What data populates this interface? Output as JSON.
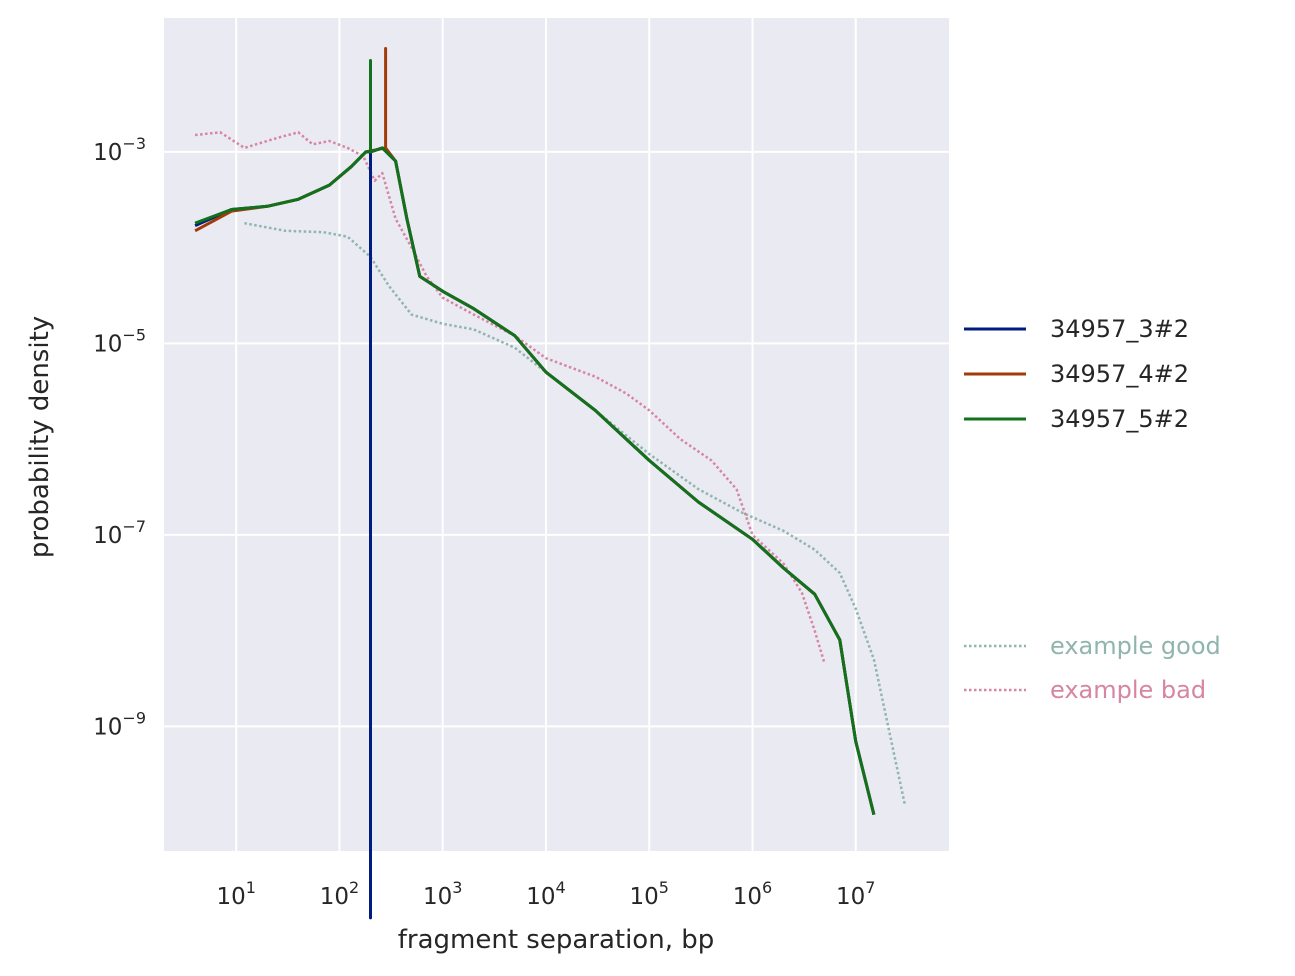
{
  "chart_data": {
    "type": "line",
    "xlabel": "fragment separation, bp",
    "ylabel": "probability density",
    "x_scale": "log",
    "y_scale": "log",
    "xlim": [
      2,
      80000000
    ],
    "ylim": [
      5e-11,
      0.025
    ],
    "grid": true,
    "legend_placement": "right",
    "x_ticks": [
      {
        "value": 10,
        "base": "10",
        "exp": "1"
      },
      {
        "value": 100,
        "base": "10",
        "exp": "2"
      },
      {
        "value": 1000,
        "base": "10",
        "exp": "3"
      },
      {
        "value": 10000,
        "base": "10",
        "exp": "4"
      },
      {
        "value": 100000,
        "base": "10",
        "exp": "5"
      },
      {
        "value": 1000000,
        "base": "10",
        "exp": "6"
      },
      {
        "value": 10000000,
        "base": "10",
        "exp": "7"
      }
    ],
    "y_ticks": [
      {
        "value": 0.001,
        "base": "10",
        "exp": "−3"
      },
      {
        "value": 1e-05,
        "base": "10",
        "exp": "−5"
      },
      {
        "value": 1e-07,
        "base": "10",
        "exp": "−7"
      },
      {
        "value": 1e-09,
        "base": "10",
        "exp": "−9"
      }
    ],
    "series": [
      {
        "name": "34957_3#2",
        "color": "#001c7f",
        "style": "solid",
        "x": [
          4,
          9,
          20,
          40,
          80,
          130,
          180,
          200,
          200,
          200,
          260,
          350,
          450,
          600,
          1000,
          2000,
          5000,
          10000,
          30000,
          100000,
          300000,
          1000000,
          2000000,
          4000000,
          7000000,
          10000000,
          15000000
        ],
        "y": [
          0.00017,
          0.00025,
          0.00027,
          0.00032,
          0.00045,
          0.0007,
          0.001,
          0.001,
          1e-11,
          0.001,
          0.0011,
          0.0008,
          0.0002,
          5e-05,
          3.5e-05,
          2.3e-05,
          1.2e-05,
          5e-06,
          2e-06,
          6e-07,
          2.2e-07,
          9e-08,
          4.5e-08,
          2.4e-08,
          8e-09,
          7e-10,
          1.2e-10
        ]
      },
      {
        "name": "34957_4#2",
        "color": "#a23b0a",
        "style": "solid",
        "x": [
          4,
          9,
          20,
          40,
          80,
          130,
          180,
          280,
          280,
          280,
          350,
          450,
          600,
          1000,
          2000,
          5000,
          10000,
          30000,
          100000,
          300000,
          1000000,
          2000000,
          4000000,
          7000000,
          10000000,
          15000000
        ],
        "y": [
          0.00015,
          0.00024,
          0.00027,
          0.00032,
          0.00045,
          0.0007,
          0.001,
          0.0011,
          0.012,
          0.0011,
          0.0008,
          0.0002,
          5e-05,
          3.5e-05,
          2.3e-05,
          1.2e-05,
          5e-06,
          2e-06,
          6e-07,
          2.2e-07,
          9e-08,
          4.5e-08,
          2.4e-08,
          8e-09,
          7e-10,
          1.2e-10
        ]
      },
      {
        "name": "34957_5#2",
        "color": "#12711c",
        "style": "solid",
        "x": [
          4,
          9,
          20,
          40,
          80,
          130,
          180,
          200,
          200,
          200,
          260,
          350,
          450,
          600,
          1000,
          2000,
          5000,
          10000,
          30000,
          100000,
          300000,
          1000000,
          2000000,
          4000000,
          7000000,
          10000000,
          15000000
        ],
        "y": [
          0.00018,
          0.00025,
          0.00027,
          0.00032,
          0.00045,
          0.0007,
          0.001,
          0.001,
          0.009,
          0.001,
          0.0011,
          0.0008,
          0.0002,
          5e-05,
          3.5e-05,
          2.3e-05,
          1.2e-05,
          5e-06,
          2e-06,
          6e-07,
          2.2e-07,
          9e-08,
          4.5e-08,
          2.4e-08,
          8e-09,
          7e-10,
          1.2e-10
        ]
      },
      {
        "name": "example good",
        "color": "#8fb5ad",
        "style": "dotted",
        "x": [
          12,
          30,
          70,
          120,
          200,
          300,
          500,
          1000,
          2000,
          5000,
          10000,
          30000,
          100000,
          300000,
          800000,
          2000000,
          4000000,
          7000000,
          10000000,
          15000000,
          30000000
        ],
        "y": [
          0.00018,
          0.00015,
          0.000145,
          0.00013,
          8e-05,
          4e-05,
          2e-05,
          1.6e-05,
          1.4e-05,
          9e-06,
          5e-06,
          2e-06,
          7e-07,
          3e-07,
          1.7e-07,
          1.1e-07,
          7e-08,
          4e-08,
          1.7e-08,
          5e-09,
          1.5e-10
        ]
      },
      {
        "name": "example bad",
        "color": "#d685a3",
        "style": "dotted",
        "x": [
          4,
          7,
          12,
          25,
          40,
          55,
          80,
          120,
          170,
          220,
          260,
          350,
          500,
          700,
          1000,
          2000,
          5000,
          10000,
          30000,
          60000,
          100000,
          200000,
          400000,
          700000,
          1000000,
          2000000,
          3000000,
          4000000,
          5000000
        ],
        "y": [
          0.0015,
          0.0016,
          0.0011,
          0.0014,
          0.0016,
          0.0012,
          0.0013,
          0.0011,
          0.0009,
          0.0005,
          0.0006,
          0.0002,
          0.0001,
          5e-05,
          3e-05,
          2e-05,
          1.2e-05,
          7e-06,
          4.5e-06,
          3e-06,
          2e-06,
          1e-06,
          6e-07,
          3e-07,
          1e-07,
          5e-08,
          2.5e-08,
          1e-08,
          4.5e-09
        ]
      }
    ]
  }
}
